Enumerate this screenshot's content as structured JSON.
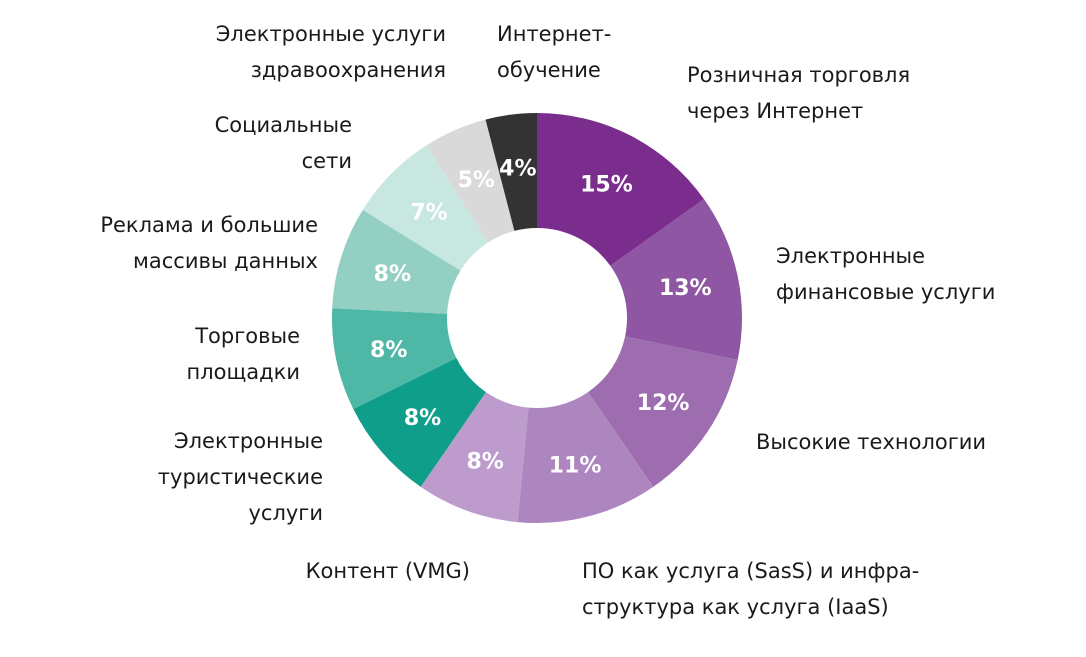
{
  "chart_data": {
    "type": "pie",
    "donut": true,
    "title": "",
    "start_angle_deg": 0,
    "direction": "clockwise",
    "center": [
      537,
      318
    ],
    "outer_radius": 205,
    "inner_radius": 90,
    "slices": [
      {
        "id": "retail",
        "label": "Розничная торговля через Интернет",
        "lines": [
          "Розничная торговля",
          "через Интернет"
        ],
        "value": 15,
        "text": "15%",
        "color": "#7b2d8e"
      },
      {
        "id": "finance",
        "label": "Электронные финансовые услуги",
        "lines": [
          "Электронные",
          "финансовые услуги"
        ],
        "value": 13,
        "text": "13%",
        "color": "#8e56a3"
      },
      {
        "id": "hightech",
        "label": "Высокие технологии",
        "lines": [
          "Высокие технологии"
        ],
        "value": 12,
        "text": "12%",
        "color": "#9d6db0"
      },
      {
        "id": "saas",
        "label": "ПО как услуга (SasS) и инфраструктура как услуга (IaaS)",
        "lines": [
          "ПО как услуга (SasS) и инфра-",
          "структура как услуга (IaaS)"
        ],
        "value": 11,
        "text": "11%",
        "color": "#ad86bf"
      },
      {
        "id": "content",
        "label": "Контент (VMG)",
        "lines": [
          "Контент (VMG)"
        ],
        "value": 8,
        "text": "8%",
        "color": "#bd9ccd"
      },
      {
        "id": "travel",
        "label": "Электронные туристические услуги",
        "lines": [
          "Электронные",
          "туристические",
          "услуги"
        ],
        "value": 8,
        "text": "8%",
        "color": "#0f9e8a"
      },
      {
        "id": "marketplaces",
        "label": "Торговые площадки",
        "lines": [
          "Торговые",
          "площадки"
        ],
        "value": 8,
        "text": "8%",
        "color": "#4fb7a5"
      },
      {
        "id": "ads",
        "label": "Реклама и большие массивы данных",
        "lines": [
          "Реклама и большие",
          "массивы данных"
        ],
        "value": 8,
        "text": "8%",
        "color": "#93cfc3"
      },
      {
        "id": "social",
        "label": "Социальные сети",
        "lines": [
          "Социальные",
          "сети"
        ],
        "value": 7,
        "text": "7%",
        "color": "#c9e7e1"
      },
      {
        "id": "health",
        "label": "Электронные услуги здравоохранения",
        "lines": [
          "Электронные услуги",
          "здравоохранения"
        ],
        "value": 5,
        "text": "5%",
        "color": "#d9d9d9"
      },
      {
        "id": "elearning",
        "label": "Интернет-обучение",
        "lines": [
          "Интернет-",
          "обучение"
        ],
        "value": 4,
        "text": "4%",
        "color": "#333333"
      }
    ],
    "total": 99
  },
  "labels": {
    "retail": {
      "line1": "Розничная торговля",
      "line2": "через Интернет"
    },
    "finance": {
      "line1": "Электронные",
      "line2": "финансовые услуги"
    },
    "hightech": {
      "line1": "Высокие технологии"
    },
    "saas": {
      "line1": "ПО как услуга (SasS) и инфра-",
      "line2": "структура как услуга (IaaS)"
    },
    "content": {
      "line1": "Контент (VMG)"
    },
    "travel": {
      "line1": "Электронные",
      "line2": "туристические",
      "line3": "услуги"
    },
    "marketplaces": {
      "line1": "Торговые",
      "line2": "площадки"
    },
    "ads": {
      "line1": "Реклама и большие",
      "line2": "массивы данных"
    },
    "social": {
      "line1": "Социальные",
      "line2": "сети"
    },
    "health": {
      "line1": "Электронные услуги",
      "line2": "здравоохранения"
    },
    "elearning": {
      "line1": "Интернет-",
      "line2": "обучение"
    }
  }
}
